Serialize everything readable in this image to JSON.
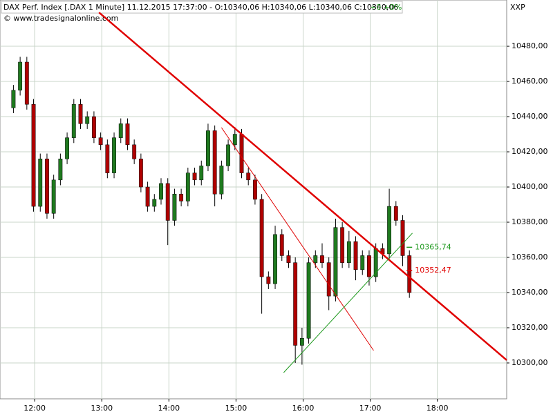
{
  "chart_data": {
    "type": "candlestick",
    "title": "DAX Perf. Index [.DAX  1 Minute] 11.12.2015 17:37:00 - O:10340,06 H:10340,06 L:10340,06 C:10340,06",
    "title_change": "+0 +0%",
    "subtitle": "© www.tradesignalonline.com",
    "axis_label": "XXP",
    "up_color": "#1f7a1f",
    "down_color": "#b00000",
    "wick_color": "#000000",
    "grid": true,
    "xlim": [
      689,
      1142
    ],
    "ylim": [
      10279.6,
      10506.3
    ],
    "xticks": [
      {
        "value": 720,
        "label": "12:00"
      },
      {
        "value": 780,
        "label": "13:00"
      },
      {
        "value": 840,
        "label": "14:00"
      },
      {
        "value": 900,
        "label": "15:00"
      },
      {
        "value": 960,
        "label": "16:00"
      },
      {
        "value": 1020,
        "label": "17:00"
      },
      {
        "value": 1080,
        "label": "18:00"
      }
    ],
    "yticks": [
      {
        "value": 10300,
        "label": "10300,00"
      },
      {
        "value": 10320,
        "label": "10320,00"
      },
      {
        "value": 10340,
        "label": "10340,00"
      },
      {
        "value": 10360,
        "label": "10360,00"
      },
      {
        "value": 10380,
        "label": "10380,00"
      },
      {
        "value": 10400,
        "label": "10400,00"
      },
      {
        "value": 10420,
        "label": "10420,00"
      },
      {
        "value": 10440,
        "label": "10440,00"
      },
      {
        "value": 10460,
        "label": "10460,00"
      },
      {
        "value": 10480,
        "label": "10480,00"
      }
    ],
    "x": [
      701,
      707,
      713,
      719,
      725,
      731,
      737,
      743,
      749,
      755,
      761,
      767,
      773,
      779,
      785,
      791,
      797,
      803,
      809,
      815,
      821,
      827,
      833,
      839,
      845,
      851,
      857,
      863,
      869,
      875,
      881,
      887,
      893,
      899,
      905,
      911,
      917,
      923,
      929,
      935,
      941,
      947,
      953,
      959,
      965,
      971,
      977,
      983,
      989,
      995,
      1001,
      1007,
      1013,
      1019,
      1025,
      1031,
      1037,
      1043,
      1049,
      1055
    ],
    "open": [
      10445,
      10455,
      10471,
      10447,
      10389,
      10416,
      10385,
      10404,
      10416,
      10428,
      10447,
      10436,
      10440,
      10428,
      10424,
      10408,
      10428,
      10436,
      10424,
      10416,
      10400,
      10389,
      10393,
      10402,
      10381,
      10396,
      10392,
      10408,
      10404,
      10412,
      10432,
      10396,
      10412,
      10424,
      10430,
      10408,
      10404,
      10393,
      10349,
      10345,
      10373,
      10361,
      10357,
      10310,
      10314,
      10357,
      10361,
      10357,
      10338,
      10377,
      10357,
      10369,
      10353,
      10361,
      10349,
      10365,
      10362,
      10389,
      10381,
      10361
    ],
    "high": [
      10458,
      10474,
      10474,
      10450,
      10419,
      10419,
      10407,
      10419,
      10431,
      10450,
      10450,
      10443,
      10443,
      10431,
      10427,
      10431,
      10439,
      10439,
      10427,
      10419,
      10403,
      10396,
      10405,
      10405,
      10399,
      10399,
      10411,
      10411,
      10415,
      10436,
      10435,
      10415,
      10427,
      10434,
      10433,
      10411,
      10407,
      10396,
      10352,
      10378,
      10376,
      10364,
      10360,
      10320,
      10360,
      10364,
      10368,
      10360,
      10382,
      10380,
      10375,
      10372,
      10364,
      10364,
      10368,
      10368,
      10399,
      10392,
      10384,
      10364
    ],
    "low": [
      10442,
      10452,
      10444,
      10386,
      10386,
      10382,
      10382,
      10401,
      10413,
      10425,
      10433,
      10433,
      10425,
      10421,
      10405,
      10405,
      10425,
      10421,
      10413,
      10397,
      10386,
      10386,
      10390,
      10367,
      10378,
      10389,
      10389,
      10401,
      10401,
      10409,
      10389,
      10393,
      10409,
      10421,
      10405,
      10401,
      10390,
      10328,
      10342,
      10342,
      10358,
      10354,
      10300,
      10299,
      10311,
      10354,
      10354,
      10330,
      10335,
      10354,
      10354,
      10347,
      10350,
      10344,
      10346,
      10359,
      10359,
      10378,
      10355,
      10337
    ],
    "close": [
      10455,
      10471,
      10447,
      10389,
      10416,
      10385,
      10404,
      10416,
      10428,
      10447,
      10436,
      10440,
      10428,
      10424,
      10408,
      10428,
      10436,
      10424,
      10416,
      10400,
      10389,
      10393,
      10402,
      10381,
      10396,
      10392,
      10408,
      10404,
      10412,
      10432,
      10396,
      10412,
      10424,
      10430,
      10408,
      10404,
      10393,
      10349,
      10345,
      10373,
      10361,
      10357,
      10310,
      10314,
      10357,
      10361,
      10357,
      10338,
      10377,
      10357,
      10369,
      10353,
      10361,
      10349,
      10365,
      10362,
      10389,
      10381,
      10361,
      10340
    ],
    "trend_lines": [
      {
        "color": "#e00000",
        "width": 2.5,
        "x": [
          777.5,
          1142
        ],
        "y": [
          10499.2,
          10301.6
        ]
      },
      {
        "color": "#e00000",
        "width": 1,
        "x": [
          887,
          1023
        ],
        "y": [
          10433.8,
          10307.1
        ]
      },
      {
        "color": "#1f9a1f",
        "width": 1,
        "x": [
          942.6,
          1057.7
        ],
        "y": [
          10294.5,
          10373.8
        ]
      }
    ],
    "annotations": [
      {
        "value": 10365.74,
        "label": "10365,74",
        "color": "#1f9a1f"
      },
      {
        "value": 10352.47,
        "label": "10352,47",
        "color": "#e00000"
      }
    ]
  }
}
